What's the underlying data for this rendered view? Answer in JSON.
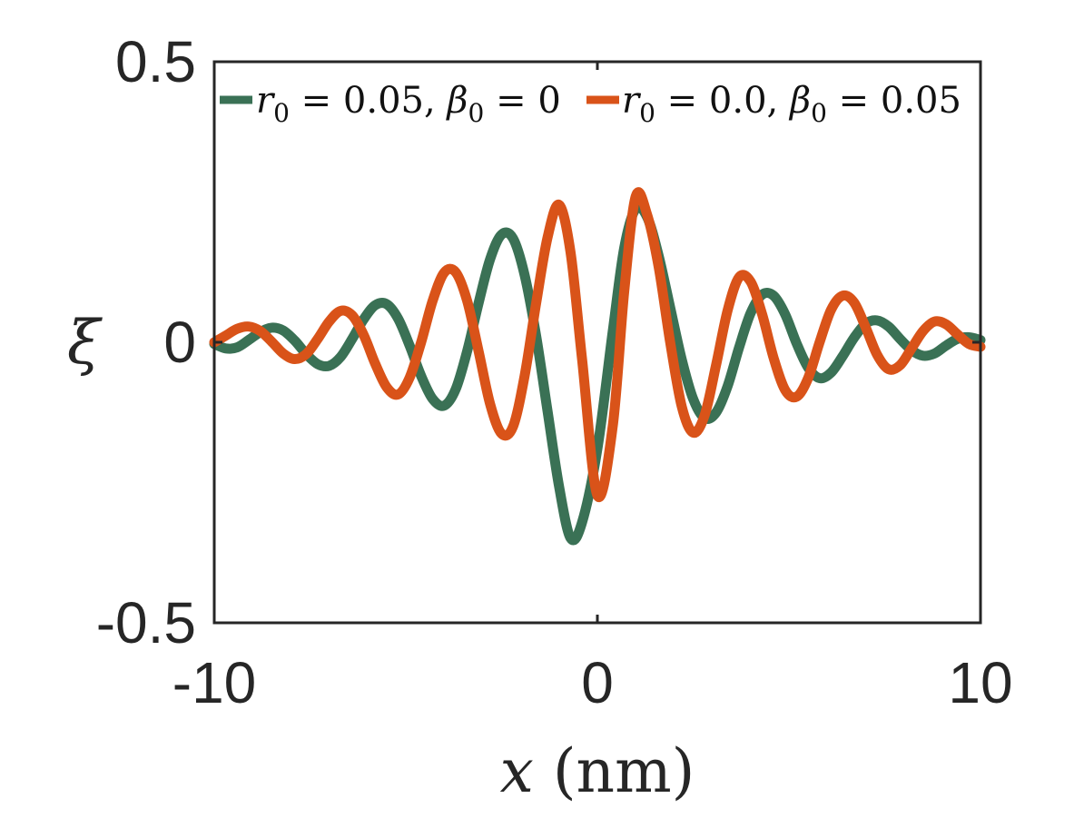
{
  "chart_data": {
    "type": "line",
    "xlabel_var": "x",
    "xlabel_unit": "(nm)",
    "ylabel": "ξ",
    "xlim": [
      -10,
      10
    ],
    "ylim": [
      -0.5,
      0.5
    ],
    "xticks": [
      -10,
      0,
      10
    ],
    "xtick_labels": [
      "-10",
      "0",
      "10"
    ],
    "yticks": [
      -0.5,
      0,
      0.5
    ],
    "ytick_labels": [
      "-0.5",
      "0",
      "0.5"
    ],
    "legend_placement": "top",
    "series": [
      {
        "legend": {
          "r_sub": "0",
          "r_val": "0.05",
          "beta_sub": "0",
          "beta_val": "0"
        },
        "color": "#3a7155",
        "x": [
          -10.0,
          -9.7,
          -9.4,
          -9.1,
          -8.8,
          -8.5,
          -8.2,
          -7.9,
          -7.6,
          -7.3,
          -7.0,
          -6.7,
          -6.4,
          -6.1,
          -5.8,
          -5.5,
          -5.2,
          -4.9,
          -4.6,
          -4.3,
          -4.0,
          -3.7,
          -3.4,
          -3.1,
          -2.8,
          -2.5,
          -2.2,
          -1.9,
          -1.6,
          -1.3,
          -1.0,
          -0.7,
          -0.4,
          0.0,
          0.4,
          0.7,
          1.0,
          1.3,
          1.6,
          1.9,
          2.2,
          2.5,
          2.8,
          3.1,
          3.4,
          3.7,
          4.0,
          4.3,
          4.6,
          4.9,
          5.2,
          5.5,
          5.8,
          6.1,
          6.4,
          6.7,
          7.0,
          7.3,
          7.6,
          7.9,
          8.2,
          8.5,
          8.8,
          9.1,
          9.4,
          9.7,
          10.0
        ],
        "y": [
          -0.003,
          -0.011,
          -0.009,
          0.004,
          0.018,
          0.026,
          0.021,
          0.003,
          -0.021,
          -0.039,
          -0.042,
          -0.026,
          0.006,
          0.041,
          0.066,
          0.068,
          0.042,
          -0.006,
          -0.06,
          -0.101,
          -0.113,
          -0.084,
          -0.016,
          0.07,
          0.148,
          0.192,
          0.185,
          0.12,
          0.012,
          -0.123,
          -0.257,
          -0.349,
          -0.321,
          -0.19,
          0.019,
          0.168,
          0.238,
          0.223,
          0.154,
          0.062,
          -0.03,
          -0.101,
          -0.135,
          -0.125,
          -0.078,
          -0.009,
          0.052,
          0.085,
          0.083,
          0.05,
          -0.002,
          -0.045,
          -0.064,
          -0.054,
          -0.025,
          0.008,
          0.033,
          0.039,
          0.028,
          0.006,
          -0.014,
          -0.024,
          -0.02,
          -0.006,
          0.006,
          0.009,
          0.004
        ]
      },
      {
        "legend": {
          "r_sub": "0",
          "r_val": "0.0",
          "beta_sub": "0",
          "beta_val": "0.05"
        },
        "color": "#d95319",
        "x": [
          -10.0,
          -9.7,
          -9.4,
          -9.1,
          -8.8,
          -8.5,
          -8.2,
          -7.9,
          -7.6,
          -7.3,
          -7.0,
          -6.7,
          -6.4,
          -6.1,
          -5.8,
          -5.5,
          -5.2,
          -4.9,
          -4.6,
          -4.3,
          -4.0,
          -3.7,
          -3.4,
          -3.1,
          -2.8,
          -2.5,
          -2.2,
          -1.9,
          -1.6,
          -1.3,
          -1.0,
          -0.7,
          -0.4,
          0.0,
          0.4,
          0.7,
          1.0,
          1.3,
          1.6,
          1.9,
          2.2,
          2.5,
          2.8,
          3.1,
          3.4,
          3.7,
          4.0,
          4.3,
          4.6,
          4.9,
          5.2,
          5.5,
          5.8,
          6.1,
          6.4,
          6.7,
          7.0,
          7.3,
          7.6,
          7.9,
          8.2,
          8.5,
          8.8,
          9.1,
          9.4,
          9.7,
          10.0
        ],
        "y": [
          0.0,
          0.012,
          0.024,
          0.028,
          0.02,
          0.001,
          -0.02,
          -0.03,
          -0.021,
          0.006,
          0.037,
          0.056,
          0.048,
          0.013,
          -0.038,
          -0.08,
          -0.093,
          -0.063,
          0.0,
          0.074,
          0.124,
          0.125,
          0.074,
          -0.016,
          -0.11,
          -0.163,
          -0.15,
          -0.06,
          0.069,
          0.187,
          0.245,
          0.16,
          -0.03,
          -0.273,
          -0.15,
          0.09,
          0.26,
          0.227,
          0.134,
          0.0,
          -0.114,
          -0.161,
          -0.13,
          -0.04,
          0.057,
          0.116,
          0.108,
          0.05,
          -0.028,
          -0.085,
          -0.097,
          -0.064,
          0.0,
          0.058,
          0.083,
          0.071,
          0.027,
          -0.022,
          -0.048,
          -0.041,
          -0.011,
          0.02,
          0.037,
          0.032,
          0.014,
          -0.003,
          -0.008
        ]
      }
    ]
  }
}
